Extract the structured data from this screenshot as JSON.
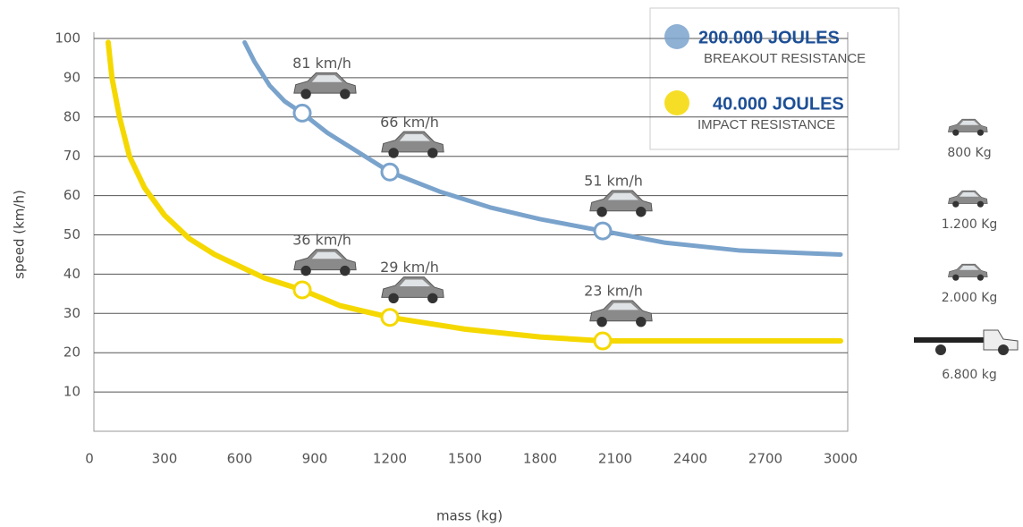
{
  "chart_data": {
    "type": "line",
    "x_label": "mass (kg)",
    "y_label": "speed (km/h)",
    "xlim": [
      0,
      3000
    ],
    "xticks": [
      0,
      300,
      600,
      900,
      1200,
      1500,
      1800,
      2100,
      2400,
      2700,
      3000
    ],
    "ylim": [
      0,
      100
    ],
    "yticks": [
      10,
      20,
      30,
      40,
      50,
      60,
      70,
      80,
      90,
      100
    ],
    "grid": true,
    "series": [
      {
        "name": "200.000 JOULES",
        "description": "BREAKOUT RESISTANCE",
        "color": "#7aa3cc",
        "x": [
          620,
          660,
          720,
          780,
          850,
          950,
          1050,
          1200,
          1400,
          1600,
          1800,
          2050,
          2300,
          2600,
          3000
        ],
        "values": [
          99,
          94,
          88,
          84,
          81,
          76,
          72,
          66,
          61,
          57,
          54,
          51,
          48,
          46,
          45
        ],
        "points": {
          "x": [
            850,
            1200,
            2050
          ],
          "values": [
            81,
            66,
            51
          ],
          "value_labels": [
            "81 km/h",
            "66 km/h",
            "51 km/h"
          ]
        }
      },
      {
        "name": "40.000 JOULES",
        "description": "IMPACT RESISTANCE",
        "color": "#f5d800",
        "x": [
          75,
          90,
          120,
          160,
          220,
          300,
          400,
          500,
          600,
          700,
          850,
          1000,
          1200,
          1500,
          1800,
          2050,
          2400,
          3000
        ],
        "values": [
          99,
          90,
          80,
          70,
          62,
          55,
          49,
          45,
          42,
          39,
          36,
          32,
          29,
          26,
          24,
          23,
          23,
          23
        ],
        "points": {
          "x": [
            850,
            1200,
            2050
          ],
          "values": [
            36,
            29,
            23
          ],
          "value_labels": [
            "36 km/h",
            "29 km/h",
            "23 km/h"
          ]
        }
      }
    ],
    "vehicle_labels": [
      "800 Kg",
      "1.200 Kg",
      "2.000 Kg",
      "6.800 kg"
    ]
  }
}
